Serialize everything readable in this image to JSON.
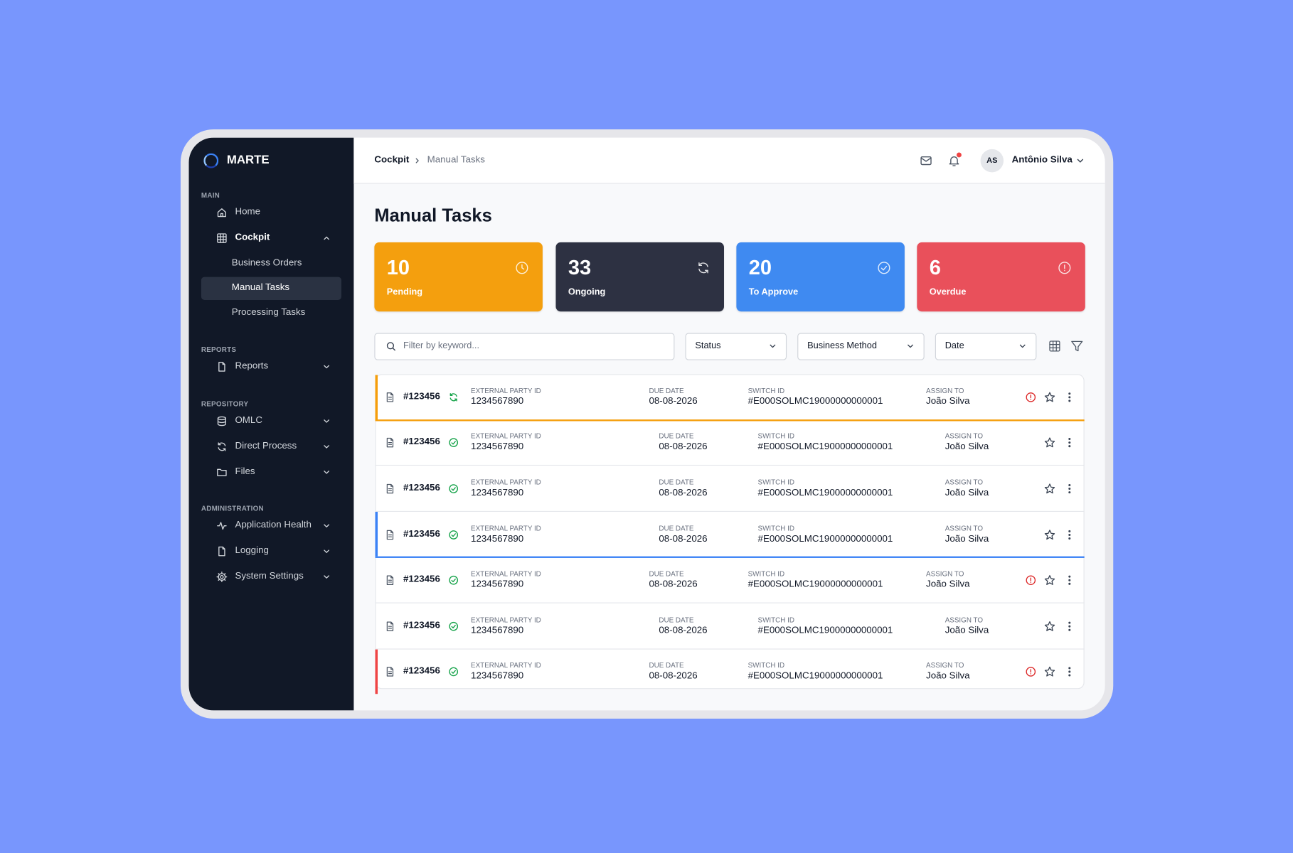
{
  "sidebar": {
    "brand": "MARTE",
    "sections": [
      {
        "title": "MAIN",
        "items": [
          "Home",
          "Cockpit",
          "Business Orders",
          "Manual Tasks",
          "Processing Tasks"
        ]
      },
      {
        "title": "REPORTS",
        "items": [
          "Reports"
        ]
      },
      {
        "title": "REPOSITORY",
        "items": [
          "OMLC",
          "Direct Process",
          "Files"
        ]
      },
      {
        "title": "ADMINISTRATION",
        "items": [
          "Application Health",
          "Logging",
          "System Settings"
        ]
      }
    ]
  },
  "header": {
    "breadcrumb": [
      "Cockpit",
      "Manual Tasks"
    ],
    "user_initials": "AS",
    "user_name": "Antônio Silva"
  },
  "page": {
    "title": "Manual Tasks"
  },
  "stats": [
    {
      "value": 10,
      "label": "Pending",
      "color": "#f49f0e"
    },
    {
      "value": 33,
      "label": "Ongoing",
      "color": "#2d3142"
    },
    {
      "value": 20,
      "label": "To Approve",
      "color": "#3f8af1"
    },
    {
      "value": 6,
      "label": "Overdue",
      "color": "#e9505b"
    }
  ],
  "filters": {
    "search_placeholder": "Filter by keyword...",
    "dropdowns": [
      "Status",
      "Business Method",
      "Date"
    ]
  },
  "tasks": {
    "columns": [
      "EXTERNAL PARTY ID",
      "DUE DATE",
      "SWITCH ID",
      "ASSIGN TO"
    ],
    "rows": [
      {
        "id": "#123456",
        "external_party_id": "1234567890",
        "due_date": "08-08-2026",
        "switch_id": "#E000SOLMC19000000000001",
        "assign_to": "João Silva",
        "status": "syncing",
        "overdue": true,
        "accent": "#f59e0b"
      },
      {
        "id": "#123456",
        "external_party_id": "1234567890",
        "due_date": "08-08-2026",
        "switch_id": "#E000SOLMC19000000000001",
        "assign_to": "João Silva",
        "status": "done",
        "overdue": false
      },
      {
        "id": "#123456",
        "external_party_id": "1234567890",
        "due_date": "08-08-2026",
        "switch_id": "#E000SOLMC19000000000001",
        "assign_to": "João Silva",
        "status": "done",
        "overdue": false
      },
      {
        "id": "#123456",
        "external_party_id": "1234567890",
        "due_date": "08-08-2026",
        "switch_id": "#E000SOLMC19000000000001",
        "assign_to": "João Silva",
        "status": "done",
        "overdue": false,
        "accent": "#3b82f6"
      },
      {
        "id": "#123456",
        "external_party_id": "1234567890",
        "due_date": "08-08-2026",
        "switch_id": "#E000SOLMC19000000000001",
        "assign_to": "João Silva",
        "status": "done",
        "overdue": true
      },
      {
        "id": "#123456",
        "external_party_id": "1234567890",
        "due_date": "08-08-2026",
        "switch_id": "#E000SOLMC19000000000001",
        "assign_to": "João Silva",
        "status": "done",
        "overdue": false
      },
      {
        "id": "#123456",
        "external_party_id": "1234567890",
        "due_date": "08-08-2026",
        "switch_id": "#E000SOLMC19000000000001",
        "assign_to": "João Silva",
        "status": "done",
        "overdue": true,
        "accent": "#ef4444"
      }
    ]
  }
}
